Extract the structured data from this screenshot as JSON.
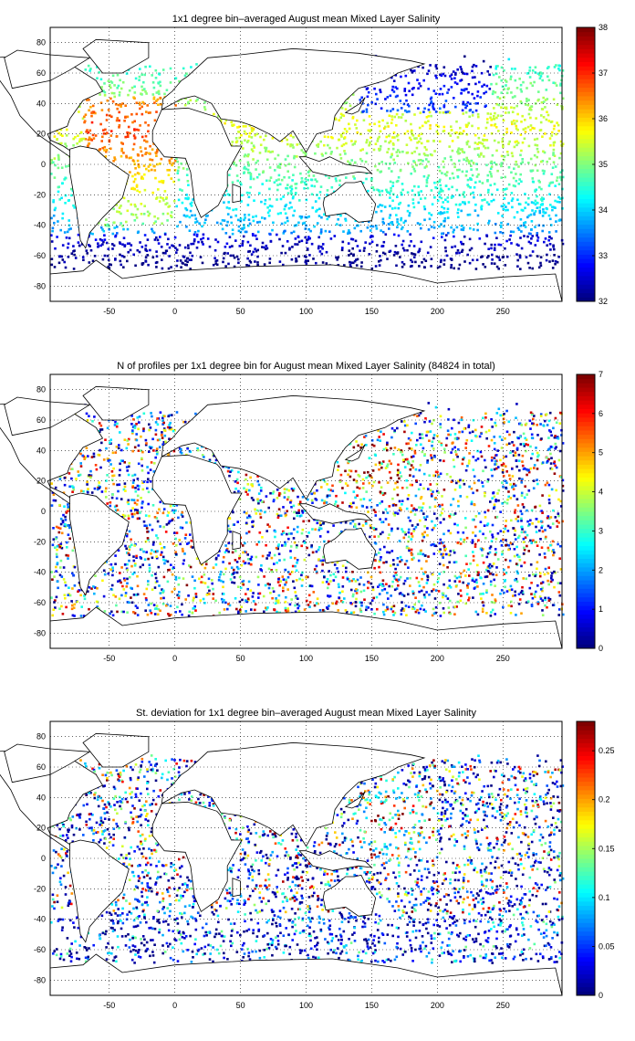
{
  "panels": [
    {
      "title": "1x1 degree bin–averaged August mean Mixed Layer Salinity",
      "colorbar": {
        "min": 32,
        "max": 38,
        "ticks": [
          "32",
          "33",
          "34",
          "35",
          "36",
          "37",
          "38"
        ]
      },
      "map": {
        "x_ticks": [
          "-50",
          "0",
          "50",
          "100",
          "150",
          "200",
          "250"
        ],
        "y_ticks": [
          "80",
          "60",
          "40",
          "20",
          "0",
          "-20",
          "-40",
          "-60",
          "-80"
        ],
        "xlim": [
          -95,
          295
        ],
        "ylim": [
          -90,
          90
        ]
      }
    },
    {
      "title": "N of profiles per 1x1 degree bin for August mean Mixed Layer Salinity  (84824 in total)",
      "colorbar": {
        "min": 0,
        "max": 7,
        "ticks": [
          "0",
          "1",
          "2",
          "3",
          "4",
          "5",
          "6",
          "7"
        ]
      },
      "map": {
        "x_ticks": [
          "-50",
          "0",
          "50",
          "100",
          "150",
          "200",
          "250"
        ],
        "y_ticks": [
          "80",
          "60",
          "40",
          "20",
          "0",
          "-20",
          "-40",
          "-60",
          "-80"
        ],
        "xlim": [
          -95,
          295
        ],
        "ylim": [
          -90,
          90
        ]
      }
    },
    {
      "title": "St. deviation for 1x1 degree bin–averaged August mean Mixed Layer Salinity",
      "colorbar": {
        "min": 0,
        "max": 0.28,
        "ticks": [
          "0",
          "0.05",
          "0.1",
          "0.15",
          "0.2",
          "0.25"
        ]
      },
      "map": {
        "x_ticks": [
          "-50",
          "0",
          "50",
          "100",
          "150",
          "200",
          "250"
        ],
        "y_ticks": [
          "80",
          "60",
          "40",
          "20",
          "0",
          "-20",
          "-40",
          "-60",
          "-80"
        ],
        "xlim": [
          -95,
          295
        ],
        "ylim": [
          -90,
          90
        ]
      }
    }
  ],
  "colormap": "jet"
}
